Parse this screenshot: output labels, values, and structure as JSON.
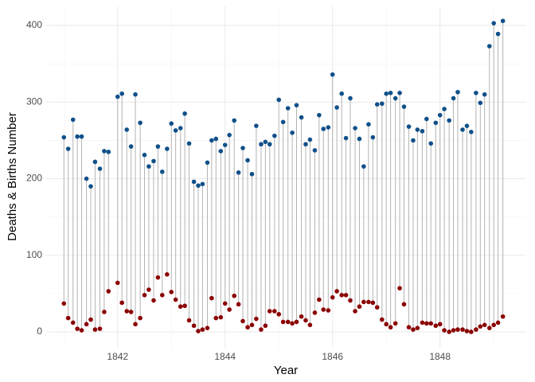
{
  "chart_data": {
    "type": "dumbbell",
    "x_label": "Year",
    "y_label": "Deaths & Births Number",
    "x": [
      1841.0,
      1841.08,
      1841.17,
      1841.25,
      1841.33,
      1841.42,
      1841.5,
      1841.58,
      1841.67,
      1841.75,
      1841.83,
      1842.0,
      1842.08,
      1842.17,
      1842.25,
      1842.33,
      1842.42,
      1842.5,
      1842.58,
      1842.67,
      1842.75,
      1842.83,
      1842.92,
      1843.0,
      1843.08,
      1843.17,
      1843.25,
      1843.33,
      1843.42,
      1843.5,
      1843.58,
      1843.67,
      1843.75,
      1843.83,
      1843.92,
      1844.0,
      1844.08,
      1844.17,
      1844.25,
      1844.33,
      1844.42,
      1844.5,
      1844.58,
      1844.67,
      1844.75,
      1844.83,
      1844.92,
      1845.0,
      1845.08,
      1845.17,
      1845.25,
      1845.33,
      1845.42,
      1845.5,
      1845.58,
      1845.67,
      1845.75,
      1845.83,
      1845.92,
      1846.0,
      1846.08,
      1846.17,
      1846.25,
      1846.33,
      1846.42,
      1846.5,
      1846.58,
      1846.67,
      1846.75,
      1846.83,
      1846.92,
      1847.0,
      1847.08,
      1847.17,
      1847.25,
      1847.33,
      1847.42,
      1847.5,
      1847.58,
      1847.67,
      1847.75,
      1847.83,
      1847.92,
      1848.0,
      1848.08,
      1848.17,
      1848.25,
      1848.33,
      1848.42,
      1848.5,
      1848.58,
      1848.67,
      1848.75,
      1848.83,
      1848.92,
      1849.0,
      1849.08,
      1849.17
    ],
    "series": [
      {
        "color": "#10508a",
        "values": [
          254,
          239,
          277,
          255,
          255,
          200,
          190,
          222,
          213,
          236,
          235,
          307,
          311,
          264,
          242,
          310,
          273,
          231,
          216,
          223,
          242,
          209,
          239,
          272,
          263,
          266,
          285,
          246,
          196,
          191,
          193,
          221,
          250,
          252,
          236,
          244,
          257,
          276,
          208,
          240,
          224,
          206,
          269,
          245,
          248,
          245,
          256,
          303,
          274,
          292,
          260,
          296,
          280,
          245,
          251,
          237,
          283,
          265,
          267,
          336,
          293,
          311,
          253,
          305,
          266,
          252,
          216,
          271,
          254,
          297,
          298,
          311,
          312,
          305,
          312,
          294,
          268,
          250,
          264,
          262,
          278,
          246,
          273,
          283,
          291,
          276,
          305,
          313,
          264,
          269,
          261,
          312,
          299,
          310,
          373,
          403,
          389,
          406
        ]
      },
      {
        "color": "#8b0000",
        "values": [
          37,
          18,
          12,
          4,
          2,
          10,
          16,
          3,
          4,
          26,
          53,
          64,
          38,
          27,
          26,
          10,
          18,
          48,
          55,
          41,
          71,
          48,
          75,
          52,
          42,
          33,
          34,
          15,
          8,
          1,
          3,
          5,
          44,
          18,
          19,
          37,
          29,
          47,
          36,
          14,
          6,
          9,
          17,
          3,
          8,
          27,
          27,
          23,
          13,
          13,
          11,
          13,
          20,
          15,
          9,
          25,
          42,
          29,
          28,
          45,
          53,
          48,
          48,
          41,
          27,
          33,
          39,
          39,
          38,
          32,
          16,
          10,
          6,
          11,
          57,
          36,
          6,
          3,
          5,
          12,
          11,
          11,
          8,
          10,
          2,
          0,
          2,
          3,
          3,
          1,
          0,
          3,
          7,
          9,
          5,
          9,
          12,
          20
        ]
      }
    ],
    "segment_color": "#b3b3b3",
    "xlim": [
      1840.67,
      1849.59
    ],
    "ylim": [
      -20.8,
      425
    ],
    "xticks": [
      1842,
      1844,
      1846,
      1848
    ],
    "yticks": [
      0,
      100,
      200,
      300,
      400
    ],
    "xminor": [
      1841,
      1843,
      1845,
      1847,
      1849
    ],
    "yminor": [
      50,
      150,
      250,
      350
    ],
    "grid": true
  }
}
